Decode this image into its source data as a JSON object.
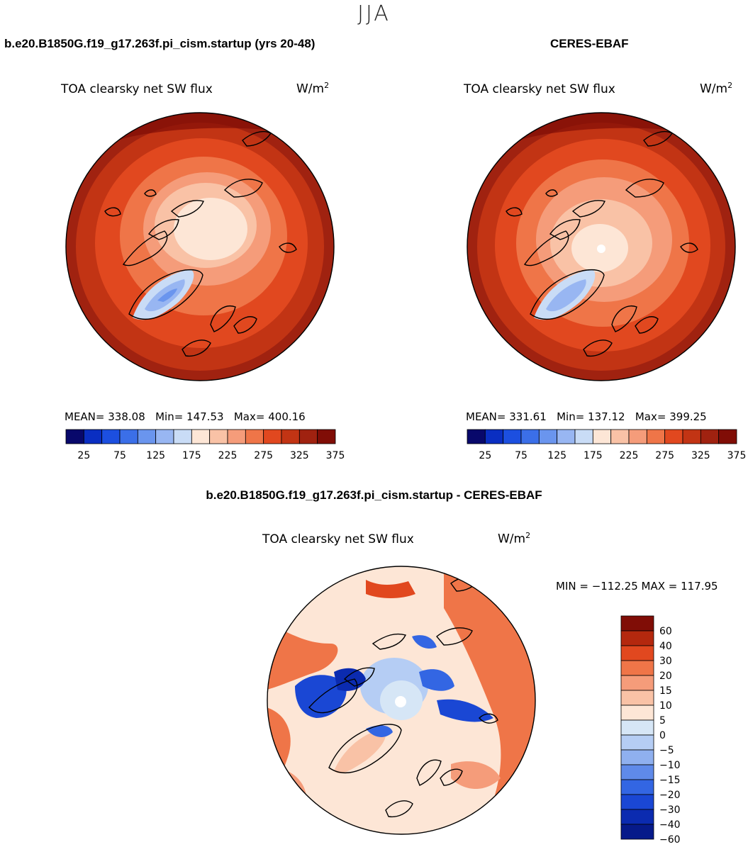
{
  "season": "JJA",
  "panels": [
    {
      "case_title": "b.e20.B1850G.f19_g17.263f.pi_cism.startup (yrs 20-48)",
      "field": "TOA clearsky net SW flux",
      "units": "W/m",
      "units_sup": "2",
      "stats": {
        "mean_label": "MEAN=",
        "mean": "338.08",
        "min_label": "Min=",
        "min": "147.53",
        "max_label": "Max=",
        "max": "400.16"
      }
    },
    {
      "case_title": "CERES-EBAF",
      "field": "TOA clearsky net SW flux",
      "units": "W/m",
      "units_sup": "2",
      "stats": {
        "mean_label": "MEAN=",
        "mean": "331.61",
        "min_label": "Min=",
        "min": "137.12",
        "max_label": "Max=",
        "max": "399.25"
      }
    }
  ],
  "diff": {
    "title": "b.e20.B1850G.f19_g17.263f.pi_cism.startup - CERES-EBAF",
    "field": "TOA clearsky net SW flux",
    "units": "W/m",
    "units_sup": "2",
    "minmax": "MIN = −112.25 MAX = 117.95"
  },
  "colors": {
    "abs_scale": [
      "#08086b",
      "#0a2ec2",
      "#1c4fe0",
      "#3b6fe8",
      "#6a95ee",
      "#98b6f2",
      "#c9dcf6",
      "#fde6d6",
      "#f9c2a6",
      "#f59c7a",
      "#ef7548",
      "#e1481f",
      "#c23414",
      "#a02210",
      "#800d06"
    ],
    "diff_scale": [
      "#800d06",
      "#b4280e",
      "#e1481f",
      "#ef7548",
      "#f59c7a",
      "#f9c2a6",
      "#fde6d6",
      "#d6e6f6",
      "#b5cdf4",
      "#8fb0ef",
      "#5f8ae9",
      "#3366e3",
      "#1a47d4",
      "#0b2bb0",
      "#061a8a"
    ]
  },
  "chart_data": [
    {
      "type": "heatmap",
      "title": "TOA clearsky net SW flux",
      "subtitle": "b.e20.B1850G.f19_g17.263f.pi_cism.startup (yrs 20-48)",
      "units": "W/m2",
      "projection": "north polar stereographic",
      "colorbar_ticks": [
        "25",
        "75",
        "125",
        "175",
        "225",
        "275",
        "325",
        "375"
      ],
      "mean": 338.08,
      "min": 147.53,
      "max": 400.16
    },
    {
      "type": "heatmap",
      "title": "TOA clearsky net SW flux",
      "subtitle": "CERES-EBAF",
      "units": "W/m2",
      "projection": "north polar stereographic",
      "colorbar_ticks": [
        "25",
        "75",
        "125",
        "175",
        "225",
        "275",
        "325",
        "375"
      ],
      "mean": 331.61,
      "min": 137.12,
      "max": 399.25
    },
    {
      "type": "heatmap",
      "title": "TOA clearsky net SW flux",
      "subtitle": "b.e20.B1850G.f19_g17.263f.pi_cism.startup - CERES-EBAF",
      "units": "W/m2",
      "projection": "north polar stereographic",
      "colorbar_labels": [
        "60",
        "40",
        "30",
        "20",
        "15",
        "10",
        "5",
        "0",
        "−5",
        "−10",
        "−15",
        "−20",
        "−30",
        "−40",
        "−60"
      ],
      "min": -112.25,
      "max": 117.95
    }
  ]
}
